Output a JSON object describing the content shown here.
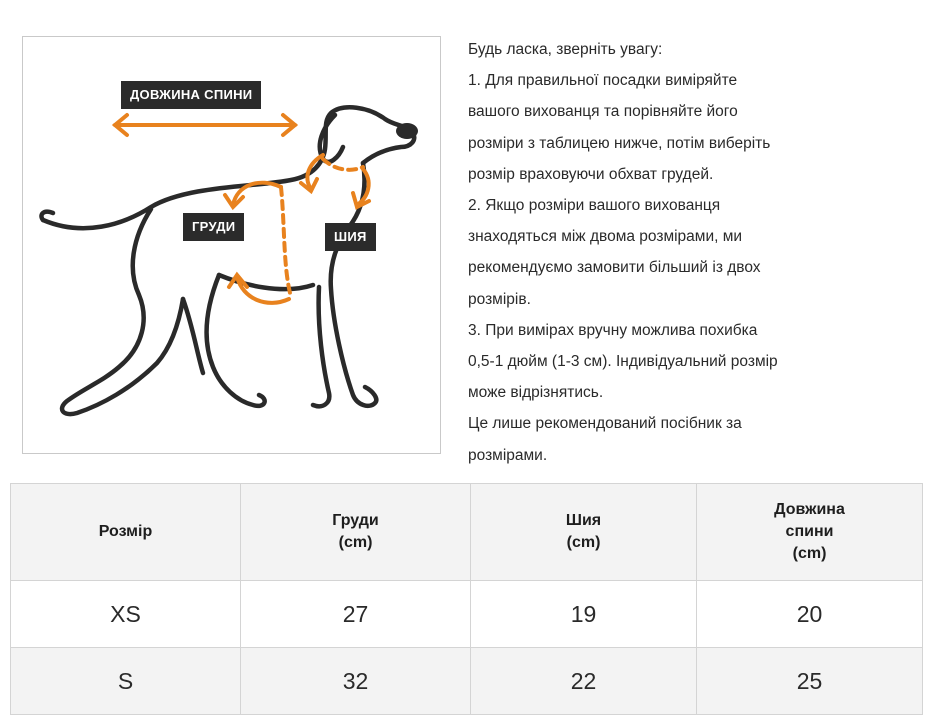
{
  "diagram": {
    "back_length_tag": "ДОВЖИНА СПИНИ",
    "chest_tag": "ГРУДИ",
    "neck_tag": "ШИЯ",
    "accent_color": "#e8821e",
    "outline_color": "#2a2a2a"
  },
  "instructions": {
    "lines": [
      "Будь ласка, зверніть увагу:",
      "1. Для правильної посадки виміряйте",
      "вашого вихованця та порівняйте його",
      "розміри з таблицею нижче, потім виберіть",
      "розмір враховуючи обхват грудей.",
      "2. Якщо розміри вашого вихованця",
      "знаходяться між двома розмірами, ми",
      "рекомендуємо замовити більший із двох",
      "розмірів.",
      "3. При вимірах вручну можлива похибка",
      "0,5-1 дюйм (1-3 см). Індивідуальний розмір",
      "може відрізнятись.",
      "Це лише рекомендований посібник за",
      "розмірами."
    ]
  },
  "table": {
    "headers": {
      "size": [
        "Розмір"
      ],
      "chest": [
        "Груди",
        "(cm)"
      ],
      "neck": [
        "Шия",
        "(cm)"
      ],
      "back": [
        "Довжина",
        "спини",
        "(cm)"
      ]
    },
    "rows": [
      {
        "size": "XS",
        "chest": "27",
        "neck": "19",
        "back": "20"
      },
      {
        "size": "S",
        "chest": "32",
        "neck": "22",
        "back": "25"
      }
    ]
  }
}
